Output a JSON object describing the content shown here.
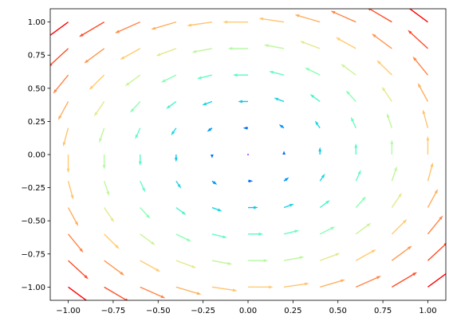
{
  "chart_data": {
    "type": "quiver",
    "title": "",
    "xlabel": "",
    "ylabel": "",
    "xlim": [
      -1.1,
      1.1
    ],
    "ylim": [
      -1.1,
      1.1
    ],
    "grid": false,
    "legend": "none",
    "colormap": "rainbow",
    "x_ticks": [
      -1.0,
      -0.75,
      -0.5,
      -0.25,
      0.0,
      0.25,
      0.5,
      0.75,
      1.0
    ],
    "x_tick_labels": [
      "−1.00",
      "−0.75",
      "−0.50",
      "−0.25",
      "0.00",
      "0.25",
      "0.50",
      "0.75",
      "1.00"
    ],
    "y_ticks": [
      -1.0,
      -0.75,
      -0.5,
      -0.25,
      0.0,
      0.25,
      0.5,
      0.75,
      1.0
    ],
    "y_tick_labels": [
      "−1.00",
      "−0.75",
      "−0.50",
      "−0.25",
      "0.00",
      "0.25",
      "0.50",
      "0.75",
      "1.00"
    ],
    "grid_x": [
      -1.0,
      -0.8,
      -0.6,
      -0.4,
      -0.2,
      0.0,
      0.2,
      0.4,
      0.6,
      0.8,
      1.0
    ],
    "grid_y": [
      -1.0,
      -0.8,
      -0.6,
      -0.4,
      -0.2,
      0.0,
      0.2,
      0.4,
      0.6,
      0.8,
      1.0
    ],
    "vector_field": {
      "u": "-y",
      "v": "x",
      "color_by": "magnitude"
    }
  }
}
